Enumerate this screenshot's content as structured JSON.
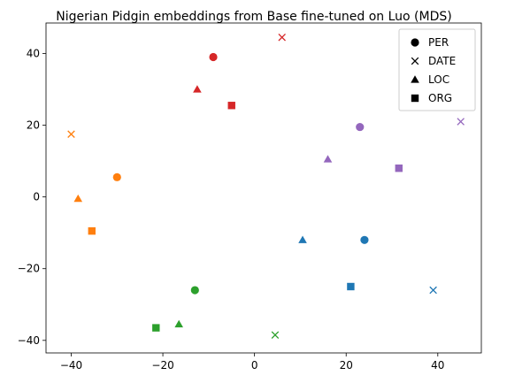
{
  "chart_data": {
    "type": "scatter",
    "title": "Nigerian Pidgin embeddings from Base fine-tuned on Luo (MDS)",
    "xlabel": "",
    "ylabel": "",
    "xlim": [
      -45.5,
      49.5
    ],
    "ylim": [
      -43.5,
      48.5
    ],
    "xticks": [
      -40,
      -20,
      0,
      20,
      40
    ],
    "yticks": [
      -40,
      -20,
      0,
      20,
      40
    ],
    "xtick_labels": [
      "−40",
      "−20",
      "0",
      "20",
      "40"
    ],
    "ytick_labels": [
      "−40",
      "−20",
      "0",
      "20",
      "40"
    ],
    "grid": false,
    "legend": {
      "position": "top-right",
      "entries": [
        {
          "label": "PER",
          "marker": "circle"
        },
        {
          "label": "DATE",
          "marker": "x"
        },
        {
          "label": "LOC",
          "marker": "triangle"
        },
        {
          "label": "ORG",
          "marker": "square"
        }
      ]
    },
    "colors": {
      "blue": "#1f77b4",
      "orange": "#ff7f0e",
      "green": "#2ca02c",
      "red": "#d62728",
      "purple": "#9467bd"
    },
    "points": [
      {
        "x": -9,
        "y": 39,
        "marker": "circle",
        "color": "red"
      },
      {
        "x": 6,
        "y": 44.5,
        "marker": "x",
        "color": "red"
      },
      {
        "x": -12.5,
        "y": 30,
        "marker": "triangle",
        "color": "red"
      },
      {
        "x": -5,
        "y": 25.5,
        "marker": "square",
        "color": "red"
      },
      {
        "x": 23,
        "y": 19.5,
        "marker": "circle",
        "color": "purple"
      },
      {
        "x": 45,
        "y": 21,
        "marker": "x",
        "color": "purple"
      },
      {
        "x": 16,
        "y": 10.5,
        "marker": "triangle",
        "color": "purple"
      },
      {
        "x": 31.5,
        "y": 8,
        "marker": "square",
        "color": "purple"
      },
      {
        "x": -30,
        "y": 5.5,
        "marker": "circle",
        "color": "orange"
      },
      {
        "x": -40,
        "y": 17.5,
        "marker": "x",
        "color": "orange"
      },
      {
        "x": -38.5,
        "y": -0.5,
        "marker": "triangle",
        "color": "orange"
      },
      {
        "x": -35.5,
        "y": -9.5,
        "marker": "square",
        "color": "orange"
      },
      {
        "x": 24,
        "y": -12,
        "marker": "circle",
        "color": "blue"
      },
      {
        "x": 39,
        "y": -26,
        "marker": "x",
        "color": "blue"
      },
      {
        "x": 10.5,
        "y": -12,
        "marker": "triangle",
        "color": "blue"
      },
      {
        "x": 21,
        "y": -25,
        "marker": "square",
        "color": "blue"
      },
      {
        "x": -13,
        "y": -26,
        "marker": "circle",
        "color": "green"
      },
      {
        "x": 4.5,
        "y": -38.5,
        "marker": "x",
        "color": "green"
      },
      {
        "x": -16.5,
        "y": -35.5,
        "marker": "triangle",
        "color": "green"
      },
      {
        "x": -21.5,
        "y": -36.5,
        "marker": "square",
        "color": "green"
      }
    ]
  }
}
